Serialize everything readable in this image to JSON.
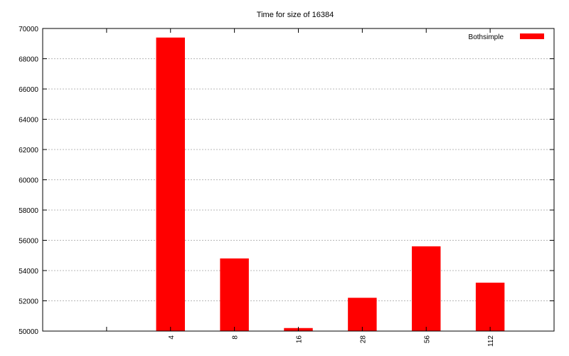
{
  "chart_data": {
    "type": "bar",
    "title": "Time for size of 16384",
    "xlabel": "",
    "ylabel": "",
    "categories": [
      "",
      "4",
      "8",
      "16",
      "28",
      "56",
      "112"
    ],
    "series": [
      {
        "name": "Bothsimple",
        "color": "#ff0000",
        "values": [
          null,
          69400,
          54800,
          50200,
          52200,
          55600,
          53200
        ]
      }
    ],
    "ylim": [
      50000,
      70000
    ],
    "yticks": [
      "50000",
      "52000",
      "54000",
      "56000",
      "58000",
      "60000",
      "62000",
      "64000",
      "66000",
      "68000",
      "70000"
    ],
    "grid": "horizontal-dashed",
    "legend_position": "top-right",
    "xtick_rotation": "vertical"
  }
}
